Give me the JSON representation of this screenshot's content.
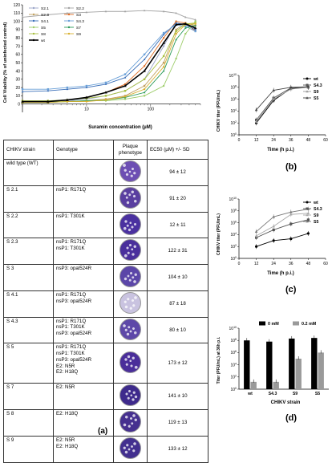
{
  "panel_labels": {
    "a": "(a)",
    "b": "(b)",
    "c": "(c)",
    "d": "(d)"
  },
  "table": {
    "headers": [
      "CHIKV strain",
      "Genotype",
      "Plaque phenotype",
      "EC50 (µM) +/- SD"
    ],
    "rows": [
      {
        "strain": "wild type (WT)",
        "genotype": [],
        "ec50": "94 ± 12",
        "plaque_color": "#6d4fb3"
      },
      {
        "strain": "S 2.1",
        "genotype": [
          "nsP1: R171Q"
        ],
        "ec50": "91 ± 20",
        "plaque_color": "#5a3fa0"
      },
      {
        "strain": "S 2.2",
        "genotype": [
          "nsP1: T301K"
        ],
        "ec50": "12 ± 11",
        "plaque_color": "#4b31a0"
      },
      {
        "strain": "S 2.3",
        "genotype": [
          "nsP1: R171Q",
          "nsP1: T301K"
        ],
        "ec50": "122 ± 31",
        "plaque_color": "#4a2f9c"
      },
      {
        "strain": "S 3",
        "genotype": [
          "nsP3: opal524R"
        ],
        "ec50": "104 ± 10",
        "plaque_color": "#5b46a8"
      },
      {
        "strain": "S 4.1",
        "genotype": [
          "nsP1: R171Q",
          "nsP3: opal524R"
        ],
        "ec50": "87 ± 18",
        "plaque_color": "#c9c3e0"
      },
      {
        "strain": "S 4.3",
        "genotype": [
          "nsP1: R171Q",
          "nsP1: T301K",
          "nsP3: opal524R"
        ],
        "ec50": "80 ± 10",
        "plaque_color": "#5e48a8"
      },
      {
        "strain": "S 5",
        "genotype": [
          "nsP1: R171Q",
          "nsP1: T301K",
          "nsP3: opal524R",
          "E2: N5R",
          "E2: H18Q"
        ],
        "ec50": "173 ± 12",
        "plaque_color": "#4a2e9a"
      },
      {
        "strain": "S 7",
        "genotype": [
          "E2: N5R"
        ],
        "ec50": "141 ± 10",
        "plaque_color": "#3e2a8c"
      },
      {
        "strain": "S 8",
        "genotype": [
          "E2: H18Q"
        ],
        "ec50": "119 ± 13",
        "plaque_color": "#46308f"
      },
      {
        "strain": "S 9",
        "genotype": [
          "E2: N5R",
          "E2: H18Q"
        ],
        "ec50": "133 ± 12",
        "plaque_color": "#43308f"
      }
    ]
  },
  "chart_data": [
    {
      "type": "line",
      "panel": "a",
      "ylabel": "Cell Viability (% of uninfected control)",
      "xlabel": "Suramin concentration (µM)",
      "yscale": "linear",
      "xscale": "log",
      "ylim": [
        -10,
        120
      ],
      "xlim": [
        1,
        600
      ],
      "yticks": [
        0,
        10,
        20,
        30,
        40,
        50,
        60,
        70,
        80,
        90,
        100,
        110,
        120
      ],
      "xticks": [
        10,
        100
      ],
      "legend": "top-left",
      "x": [
        1,
        2.5,
        5,
        10,
        20,
        40,
        80,
        160,
        250,
        350,
        500
      ],
      "series": [
        {
          "name": "S2.1",
          "color": "#9aa5c8",
          "values": [
            3,
            3,
            4,
            6,
            10,
            16,
            30,
            70,
            98,
            96,
            90
          ]
        },
        {
          "name": "S2.2",
          "color": "#a3a3a3",
          "values": [
            105,
            108,
            110,
            111,
            112,
            112,
            113,
            112,
            110,
            105,
            102
          ]
        },
        {
          "name": "S2.3",
          "color": "#c0a060",
          "values": [
            2,
            2,
            3,
            4,
            6,
            10,
            22,
            50,
            90,
            98,
            95
          ]
        },
        {
          "name": "S3",
          "color": "#e07028",
          "values": [
            3,
            3,
            5,
            8,
            14,
            24,
            46,
            80,
            100,
            98,
            88
          ]
        },
        {
          "name": "S4.1",
          "color": "#3a6fb8",
          "values": [
            15,
            16,
            18,
            20,
            24,
            32,
            54,
            84,
            98,
            96,
            90
          ]
        },
        {
          "name": "S4.3",
          "color": "#6aa0d8",
          "values": [
            18,
            18,
            20,
            22,
            26,
            36,
            60,
            86,
            96,
            94,
            88
          ]
        },
        {
          "name": "S5",
          "color": "#9ccc68",
          "values": [
            3,
            3,
            3,
            4,
            4,
            6,
            10,
            22,
            55,
            85,
            100
          ]
        },
        {
          "name": "S7",
          "color": "#2a9a58",
          "values": [
            2,
            2,
            3,
            4,
            5,
            8,
            14,
            40,
            78,
            92,
            95
          ]
        },
        {
          "name": "S8",
          "color": "#a8c040",
          "values": [
            4,
            4,
            5,
            7,
            10,
            16,
            30,
            58,
            88,
            97,
            98
          ]
        },
        {
          "name": "S9",
          "color": "#d8b030",
          "values": [
            2,
            2,
            3,
            3,
            5,
            9,
            18,
            45,
            85,
            96,
            97
          ]
        },
        {
          "name": "wt",
          "color": "#000000",
          "values": [
            3,
            3,
            5,
            8,
            14,
            22,
            40,
            74,
            96,
            97,
            92
          ]
        }
      ]
    },
    {
      "type": "line",
      "panel": "b",
      "ylabel": "CHIKV titer (PFU/mL)",
      "xlabel": "Time (h p.i.)",
      "yscale": "log",
      "xscale": "linear",
      "ylim_exp": [
        0,
        10
      ],
      "xlim": [
        0,
        60
      ],
      "xticks": [
        0,
        12,
        24,
        36,
        48,
        60
      ],
      "legend": "top-right",
      "x": [
        12,
        24,
        36,
        48
      ],
      "series": [
        {
          "name": "wt",
          "marker": "circle",
          "color": "#000000",
          "values_exp": [
            2.0,
            5.8,
            7.8,
            8.0
          ]
        },
        {
          "name": "S4.3",
          "marker": "square",
          "color": "#555555",
          "values_exp": [
            2.5,
            6.2,
            7.9,
            8.0
          ]
        },
        {
          "name": "S9",
          "marker": "triangle",
          "color": "#999999",
          "values_exp": [
            2.2,
            6.0,
            7.7,
            8.0
          ]
        },
        {
          "name": "S5",
          "marker": "triangle",
          "color": "#444444",
          "values_exp": [
            4.2,
            7.5,
            8.0,
            8.1
          ]
        }
      ]
    },
    {
      "type": "line",
      "panel": "c",
      "ylabel": "CHIKV titer (PFU/mL)",
      "xlabel": "Time (h p.i.)",
      "yscale": "log",
      "xscale": "linear",
      "ylim_exp": [
        0,
        10
      ],
      "xlim": [
        0,
        60
      ],
      "xticks": [
        0,
        12,
        24,
        36,
        48,
        60
      ],
      "legend": "top-right",
      "x": [
        12,
        24,
        36,
        48
      ],
      "series": [
        {
          "name": "wt",
          "marker": "circle",
          "color": "#000000",
          "values_exp": [
            2.0,
            3.0,
            3.3,
            4.2
          ]
        },
        {
          "name": "S4.3",
          "marker": "square",
          "color": "#555555",
          "values_exp": [
            3.5,
            4.8,
            5.8,
            6.5
          ]
        },
        {
          "name": "S9",
          "marker": "triangle",
          "color": "#aaaaaa",
          "values_exp": [
            3.8,
            5.4,
            7.4,
            7.6
          ]
        },
        {
          "name": "S5",
          "marker": "triangle",
          "color": "#777777",
          "values_exp": [
            4.5,
            7.0,
            7.8,
            8.3
          ]
        }
      ]
    },
    {
      "type": "bar",
      "panel": "d",
      "ylabel": "Titer (PFU/mL) at 36h p.i.",
      "xlabel": "CHIKV strain",
      "yscale": "log",
      "ylim_exp": [
        0,
        10
      ],
      "categories": [
        "wt",
        "S4.3",
        "S9",
        "S5"
      ],
      "legend": "top",
      "series": [
        {
          "name": "0 mM",
          "color": "#000000",
          "values_exp": [
            8.0,
            7.8,
            8.3,
            8.4
          ]
        },
        {
          "name": "0.2 mM",
          "color": "#9a9a9a",
          "values_exp": [
            1.2,
            1.2,
            5.0,
            6.0
          ]
        }
      ]
    }
  ]
}
